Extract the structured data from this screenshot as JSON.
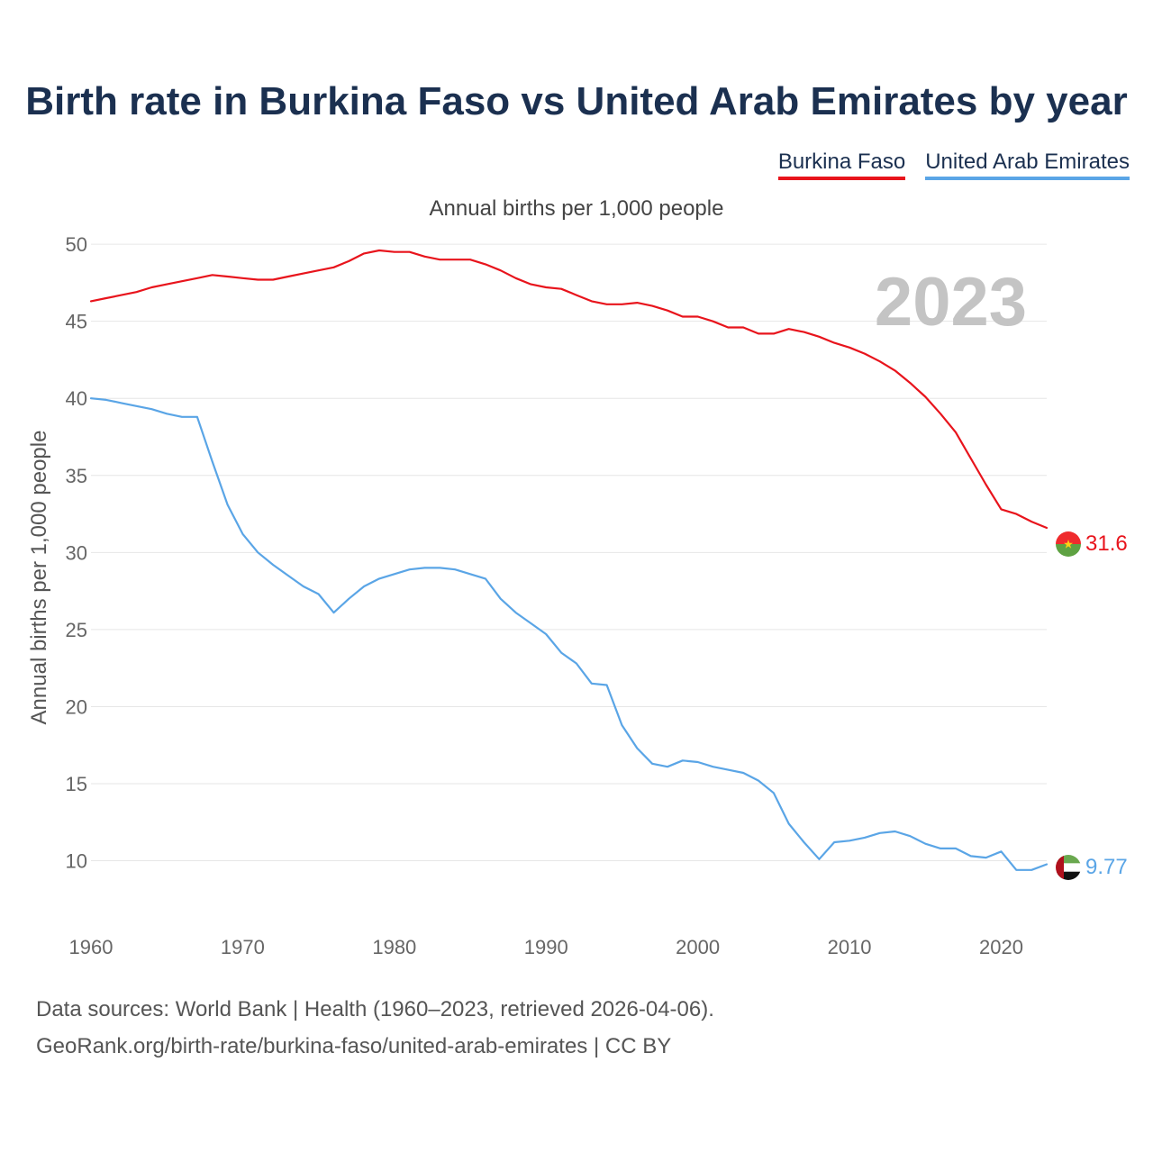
{
  "title": "Birth rate in Burkina Faso vs United Arab Emirates by year",
  "legend": [
    {
      "label": "Burkina Faso",
      "color": "#e8141c"
    },
    {
      "label": "United Arab Emirates",
      "color": "#5aa5e6"
    }
  ],
  "subtitle": "Annual births per 1,000 people",
  "footer": {
    "source": "Data sources: World Bank | Health (1960–2023, retrieved 2026-04-06).",
    "credit": "GeoRank.org/birth-rate/burkina-faso/united-arab-emirates | CC BY"
  },
  "chart_data": {
    "type": "line",
    "title": "Birth rate in Burkina Faso vs United Arab Emirates by year",
    "ylabel": "Annual births per 1,000 people",
    "xlabel": "",
    "watermark_year": "2023",
    "xlim": [
      1960,
      2023
    ],
    "ylim": [
      6,
      51
    ],
    "x_ticks": [
      1960,
      1970,
      1980,
      1990,
      2000,
      2010,
      2020
    ],
    "y_ticks": [
      10,
      15,
      20,
      25,
      30,
      35,
      40,
      45,
      50
    ],
    "grid": true,
    "x": [
      1960,
      1961,
      1962,
      1963,
      1964,
      1965,
      1966,
      1967,
      1968,
      1969,
      1970,
      1971,
      1972,
      1973,
      1974,
      1975,
      1976,
      1977,
      1978,
      1979,
      1980,
      1981,
      1982,
      1983,
      1984,
      1985,
      1986,
      1987,
      1988,
      1989,
      1990,
      1991,
      1992,
      1993,
      1994,
      1995,
      1996,
      1997,
      1998,
      1999,
      2000,
      2001,
      2002,
      2003,
      2004,
      2005,
      2006,
      2007,
      2008,
      2009,
      2010,
      2011,
      2012,
      2013,
      2014,
      2015,
      2016,
      2017,
      2018,
      2019,
      2020,
      2021,
      2022,
      2023
    ],
    "series": [
      {
        "name": "Burkina Faso",
        "color": "#e8141c",
        "end_label": "31.6",
        "values": [
          46.3,
          46.5,
          46.7,
          46.9,
          47.2,
          47.4,
          47.6,
          47.8,
          48.0,
          47.9,
          47.8,
          47.7,
          47.7,
          47.9,
          48.1,
          48.3,
          48.5,
          48.9,
          49.4,
          49.6,
          49.5,
          49.5,
          49.2,
          49.0,
          49.0,
          49.0,
          48.7,
          48.3,
          47.8,
          47.4,
          47.2,
          47.1,
          46.7,
          46.3,
          46.1,
          46.1,
          46.2,
          46.0,
          45.7,
          45.3,
          45.3,
          45.0,
          44.6,
          44.6,
          44.2,
          44.2,
          44.5,
          44.3,
          44.0,
          43.6,
          43.3,
          42.9,
          42.4,
          41.8,
          41.0,
          40.1,
          39.0,
          37.8,
          36.1,
          34.4,
          32.8,
          32.5,
          32.0,
          31.6
        ]
      },
      {
        "name": "United Arab Emirates",
        "color": "#5aa5e6",
        "end_label": "9.77",
        "values": [
          40.0,
          39.9,
          39.7,
          39.5,
          39.3,
          39.0,
          38.8,
          38.8,
          35.9,
          33.1,
          31.2,
          30.0,
          29.2,
          28.5,
          27.8,
          27.3,
          26.1,
          27.0,
          27.8,
          28.3,
          28.6,
          28.9,
          29.0,
          29.0,
          28.9,
          28.6,
          28.3,
          27.0,
          26.1,
          25.4,
          24.7,
          23.5,
          22.8,
          21.5,
          21.4,
          18.8,
          17.3,
          16.3,
          16.1,
          16.5,
          16.4,
          16.1,
          15.9,
          15.7,
          15.2,
          14.4,
          12.4,
          11.2,
          10.1,
          11.2,
          11.3,
          11.5,
          11.8,
          11.9,
          11.6,
          11.1,
          10.8,
          10.8,
          10.3,
          10.2,
          10.6,
          9.4,
          9.4,
          9.77
        ]
      }
    ]
  }
}
